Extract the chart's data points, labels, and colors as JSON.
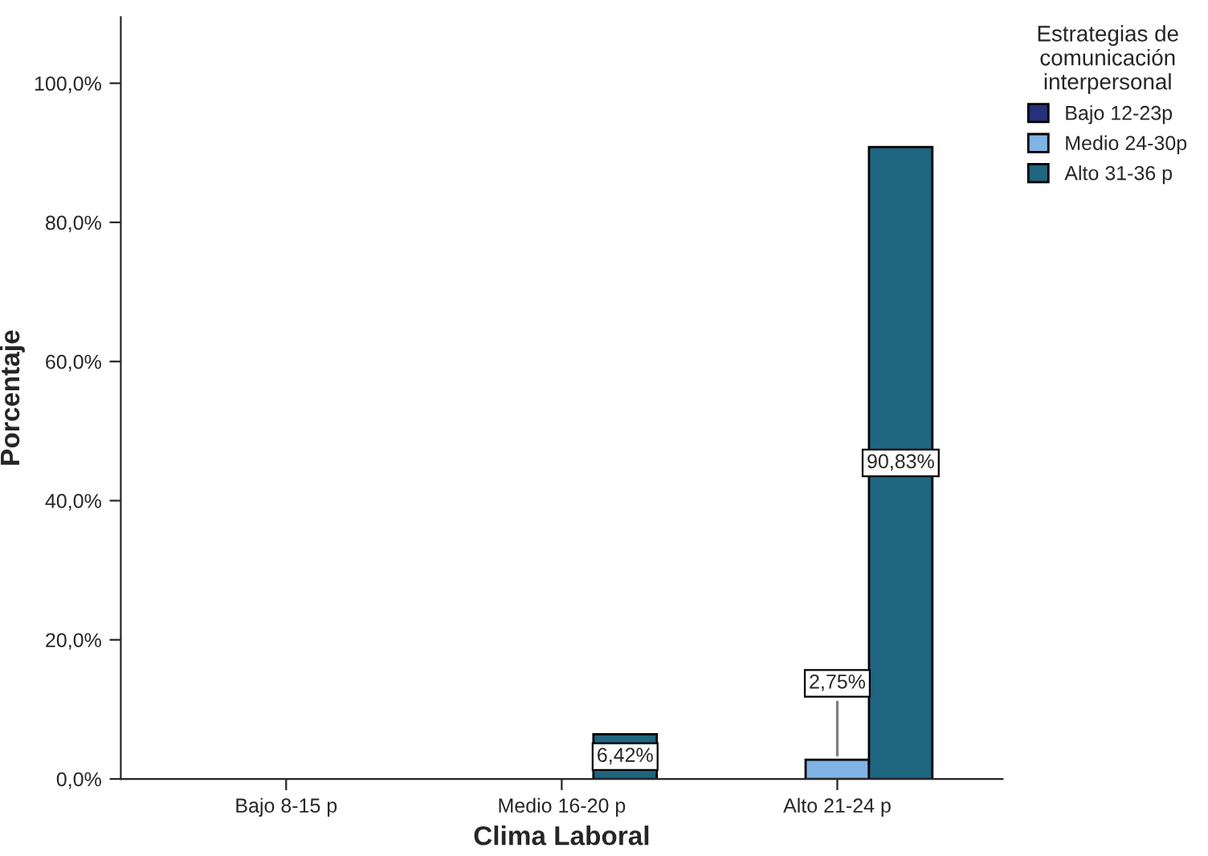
{
  "chart_data": {
    "type": "bar",
    "xlabel": "Clima Laboral",
    "ylabel": "Porcentaje",
    "legend_title": "Estrategias de\ncomunicación\ninterpersonal",
    "categories": [
      "Bajo 8-15 p",
      "Medio 16-20 p",
      "Alto 21-24 p"
    ],
    "series": [
      {
        "name": "Bajo 12-23p",
        "color": "#25317a",
        "values": [
          null,
          null,
          null
        ]
      },
      {
        "name": "Medio 24-30p",
        "color": "#7fb4e4",
        "values": [
          null,
          null,
          2.75
        ],
        "value_labels": [
          null,
          null,
          "2,75%"
        ]
      },
      {
        "name": "Alto 31-36 p",
        "color": "#1f6680",
        "values": [
          null,
          6.42,
          90.83
        ],
        "value_labels": [
          null,
          "6,42%",
          "90,83%"
        ]
      }
    ],
    "ylim": [
      0,
      109.5
    ],
    "yticks": [
      {
        "value": 0,
        "label": "0,0%"
      },
      {
        "value": 20,
        "label": "20,0%"
      },
      {
        "value": 40,
        "label": "40,0%"
      },
      {
        "value": 60,
        "label": "60,0%"
      },
      {
        "value": 80,
        "label": "80,0%"
      },
      {
        "value": 100,
        "label": "100,0%"
      }
    ],
    "grid": false,
    "legend": "right"
  }
}
